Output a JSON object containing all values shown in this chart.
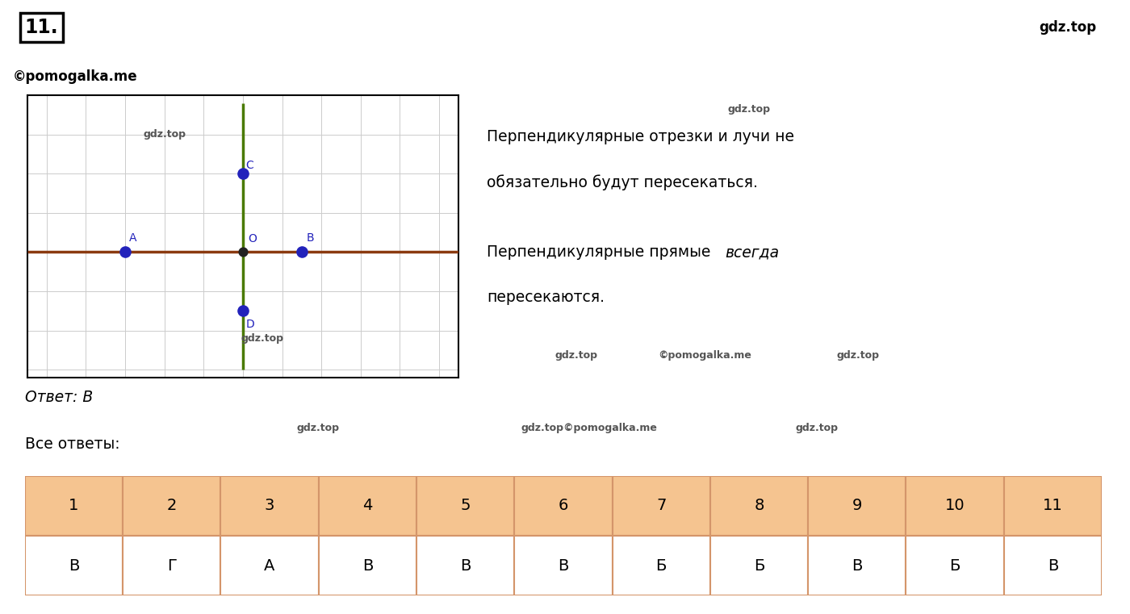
{
  "title_number": "11.",
  "watermark_top_right": "gdz.top",
  "answer_text": "Ответ: В",
  "all_answers_label": "Все ответы:",
  "table_headers": [
    "1",
    "2",
    "3",
    "4",
    "5",
    "6",
    "7",
    "8",
    "9",
    "10",
    "11"
  ],
  "table_values": [
    "В",
    "Г",
    "А",
    "В",
    "В",
    "В",
    "Б",
    "Б",
    "В",
    "Б",
    "В"
  ],
  "table_header_color": "#f5c490",
  "grid_bg": "#ffffff",
  "grid_color": "#cccccc",
  "horizontal_line_color": "#8B3A10",
  "vertical_line_color": "#4a7a00",
  "point_color": "#2222bb",
  "point_center_color": "#222222",
  "right_panel_text1": "Перпендикулярные отрезки и лучи не",
  "right_panel_text2": "обязательно будут пересекаться.",
  "right_panel_text3_normal": "Перпендикулярные прямые ",
  "right_panel_text3_italic": "всегда",
  "right_panel_text4": "пересекаются.",
  "point_A": [
    -3.0,
    0.0
  ],
  "point_B": [
    1.5,
    0.0
  ],
  "point_C": [
    0.0,
    2.0
  ],
  "point_D": [
    0.0,
    -1.5
  ],
  "point_O": [
    0.0,
    0.0
  ],
  "label_A": "A",
  "label_B": "B",
  "label_C": "C",
  "label_D": "D",
  "label_O": "O",
  "h_line_x": [
    -5.5,
    5.5
  ],
  "v_line_y": [
    -3.0,
    3.8
  ],
  "xlim": [
    -5.5,
    5.5
  ],
  "ylim": [
    -3.2,
    4.0
  ]
}
